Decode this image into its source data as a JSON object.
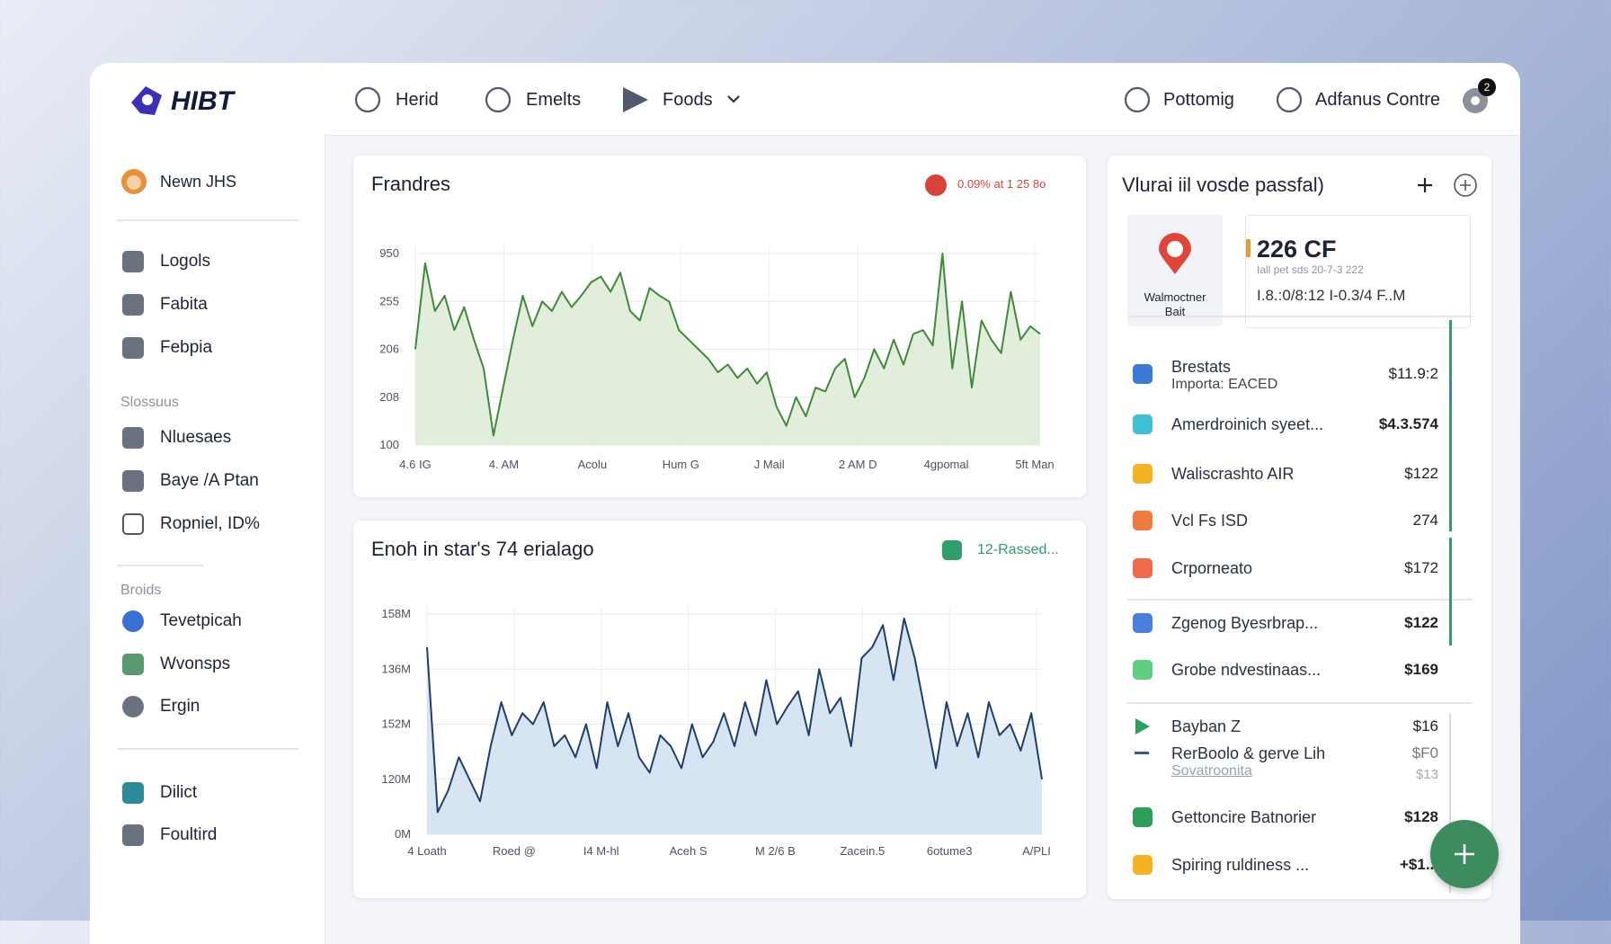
{
  "nav": {
    "logo": "HIBT",
    "items": [
      "Herid",
      "Emelts",
      "Foods",
      "Pottomig",
      "Adfanus Contre"
    ],
    "badge": "2"
  },
  "sidebar": {
    "user": "Newn JHS",
    "groups": [
      {
        "items": [
          "Logols",
          "Fabita",
          "Febpia"
        ]
      },
      {
        "heading": "Slossuus",
        "items": [
          "Nluesaes",
          "Baye /A Ptan",
          "Ropniel, ID%"
        ]
      },
      {
        "heading": "Broids",
        "items": [
          "Tevetpicah",
          "Wvonsps",
          "Ergin"
        ]
      },
      {
        "items": [
          "Dilict",
          "Foultird"
        ]
      }
    ]
  },
  "chart_data": [
    {
      "type": "line",
      "title": "Frandres",
      "badge": "0.09% at 1 25 8o",
      "y_labels": [
        "950",
        "255",
        "206",
        "208",
        "100"
      ],
      "x_labels": [
        "4.6 IG",
        "4. AM",
        "Acolu",
        "Hum G",
        "J Mail",
        "2 AM D",
        "4gpomal",
        "5ft Man"
      ],
      "ylim": [
        0,
        100
      ],
      "color": "#3f8a3a",
      "fill": "#dcebd6",
      "values": [
        50,
        95,
        70,
        78,
        60,
        72,
        55,
        40,
        5,
        30,
        55,
        78,
        62,
        75,
        70,
        80,
        72,
        78,
        85,
        88,
        80,
        90,
        70,
        65,
        82,
        78,
        75,
        60,
        55,
        50,
        45,
        38,
        42,
        35,
        40,
        32,
        38,
        20,
        10,
        25,
        15,
        30,
        28,
        40,
        45,
        25,
        35,
        50,
        40,
        55,
        42,
        58,
        60,
        52,
        100,
        40,
        75,
        30,
        65,
        55,
        48,
        80,
        55,
        62,
        58
      ]
    },
    {
      "type": "line",
      "title": "Enoh in star's 74 erialago",
      "badge": "12-Rassed...",
      "y_labels": [
        "158M",
        "136M",
        "152M",
        "120M",
        "0M"
      ],
      "x_labels": [
        "4 Loath",
        "Roed @",
        "I4 M-hl",
        "Aceh S",
        "M 2/6 B",
        "Zacein.5",
        "6otume3",
        "A/PLI"
      ],
      "ylim": [
        0,
        100
      ],
      "color": "#1f3f6b",
      "fill": "#cfe0ee",
      "values": [
        85,
        10,
        20,
        35,
        25,
        15,
        40,
        60,
        45,
        55,
        50,
        60,
        40,
        45,
        35,
        50,
        30,
        60,
        40,
        55,
        35,
        28,
        45,
        40,
        30,
        50,
        35,
        42,
        55,
        40,
        60,
        45,
        70,
        50,
        58,
        65,
        45,
        75,
        55,
        62,
        40,
        80,
        85,
        95,
        70,
        98,
        80,
        55,
        30,
        60,
        40,
        55,
        35,
        60,
        45,
        50,
        38,
        55,
        25
      ]
    }
  ],
  "panel": {
    "title": "Vlurai iil vosde passfal)",
    "featured": {
      "label": "Walmoctner Bait",
      "value": "226 CF",
      "line1": "Iall pet sds 20-7-3 222",
      "line2": "I.8.:0/8:12 I-0.3/4 F..M"
    },
    "rows": [
      {
        "name": "Brestats",
        "sub": "Importa: EACED",
        "amount": "$11.9:2"
      },
      {
        "name": "Amerdroinich syeet...",
        "amount": "$4.3.574"
      },
      {
        "name": "Waliscrashto AIR",
        "amount": "$122"
      },
      {
        "name": "Vcl Fs ISD",
        "amount": "274"
      },
      {
        "name": "Crporneato",
        "amount": "$172"
      },
      {
        "name": "Zgenog Byesrbrap...",
        "amount": "$122"
      },
      {
        "name": "Grobe ndvestinaas...",
        "amount": "$169"
      },
      {
        "name": "Bayban Z",
        "amount": "$16"
      },
      {
        "name": "RerBoolo & gerve Lih",
        "sub": "Sovatroonita",
        "amount": "$F0",
        "amount2": "$13"
      },
      {
        "name": "Gettoncire Batnorier",
        "amount": "$128"
      },
      {
        "name": "Spiring ruldiness ...",
        "amount": "+$1..."
      }
    ]
  }
}
